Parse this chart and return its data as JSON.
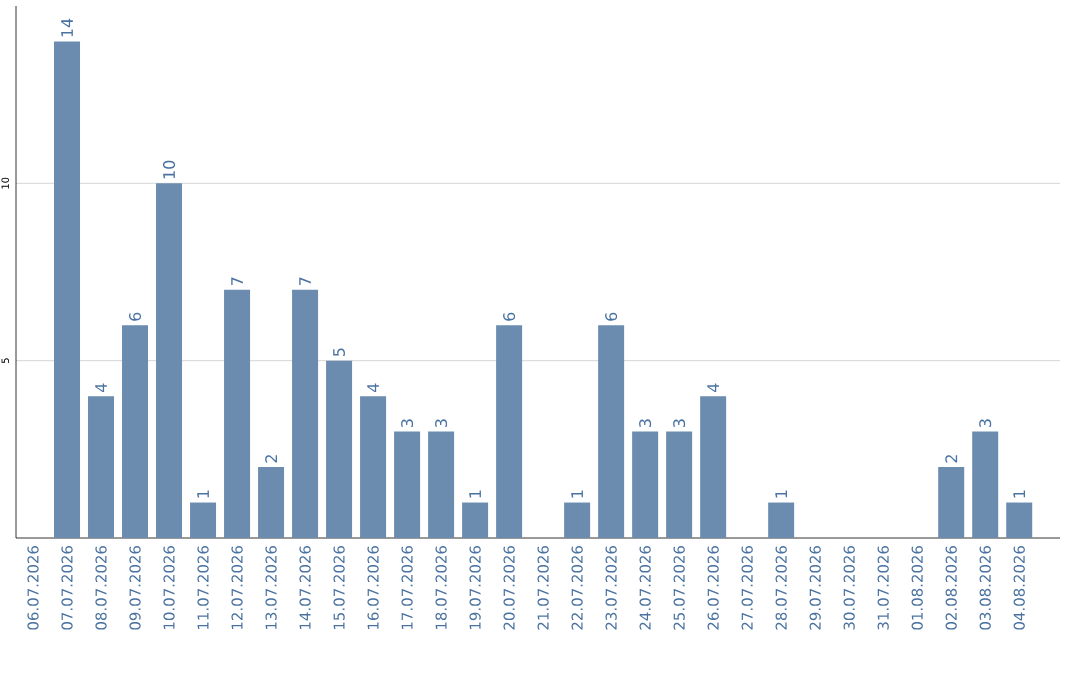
{
  "chart_data": {
    "type": "bar",
    "categories": [
      "06.07.2026",
      "07.07.2026",
      "08.07.2026",
      "09.07.2026",
      "10.07.2026",
      "11.07.2026",
      "12.07.2026",
      "13.07.2026",
      "14.07.2026",
      "15.07.2026",
      "16.07.2026",
      "17.07.2026",
      "18.07.2026",
      "19.07.2026",
      "20.07.2026",
      "21.07.2026",
      "22.07.2026",
      "23.07.2026",
      "24.07.2026",
      "25.07.2026",
      "26.07.2026",
      "27.07.2026",
      "28.07.2026",
      "29.07.2026",
      "30.07.2026",
      "31.07.2026",
      "01.08.2026",
      "02.08.2026",
      "03.08.2026",
      "04.08.2026"
    ],
    "values": [
      0,
      14,
      4,
      6,
      10,
      1,
      7,
      2,
      7,
      5,
      4,
      3,
      3,
      1,
      6,
      0,
      1,
      6,
      3,
      3,
      4,
      0,
      1,
      0,
      0,
      0,
      0,
      2,
      3,
      1
    ],
    "value_labels": [
      null,
      "14",
      "4",
      "6",
      "10",
      "1",
      "7",
      "2",
      "7",
      "5",
      "4",
      "3",
      "3",
      "1",
      "6",
      null,
      "1",
      "6",
      "3",
      "3",
      "4",
      null,
      "1",
      null,
      null,
      null,
      null,
      "2",
      "3",
      "1"
    ],
    "color": "#6b8cae",
    "ylim": [
      0,
      15
    ],
    "yticks": [
      5,
      10
    ],
    "grid": "y"
  }
}
